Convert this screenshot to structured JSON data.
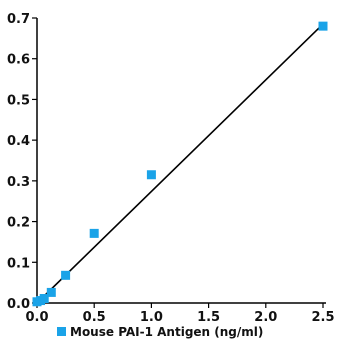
{
  "chart_data": {
    "type": "scatter",
    "title": "",
    "xlabel": "",
    "ylabel": "",
    "xlim": [
      0,
      2.5
    ],
    "ylim": [
      0,
      0.7
    ],
    "x_ticks": [
      "0.0",
      "0.5",
      "1.0",
      "1.5",
      "2.0",
      "2.5"
    ],
    "y_ticks": [
      "0.0",
      "0.1",
      "0.2",
      "0.3",
      "0.4",
      "0.5",
      "0.6",
      "0.7"
    ],
    "grid": false,
    "legend_position": "bottom-left",
    "series": [
      {
        "name": "Mouse PAI-1 Antigen (ng/ml)",
        "color": "#1aa3e8",
        "marker": "square",
        "x": [
          0,
          0.031,
          0.063,
          0.125,
          0.25,
          0.5,
          1.0,
          2.5
        ],
        "y": [
          0.003,
          0.006,
          0.011,
          0.026,
          0.068,
          0.171,
          0.315,
          0.68
        ]
      }
    ],
    "trendline": {
      "type": "linear",
      "color": "#000000",
      "from": [
        0,
        0
      ],
      "to": [
        2.5,
        0.685
      ]
    }
  }
}
